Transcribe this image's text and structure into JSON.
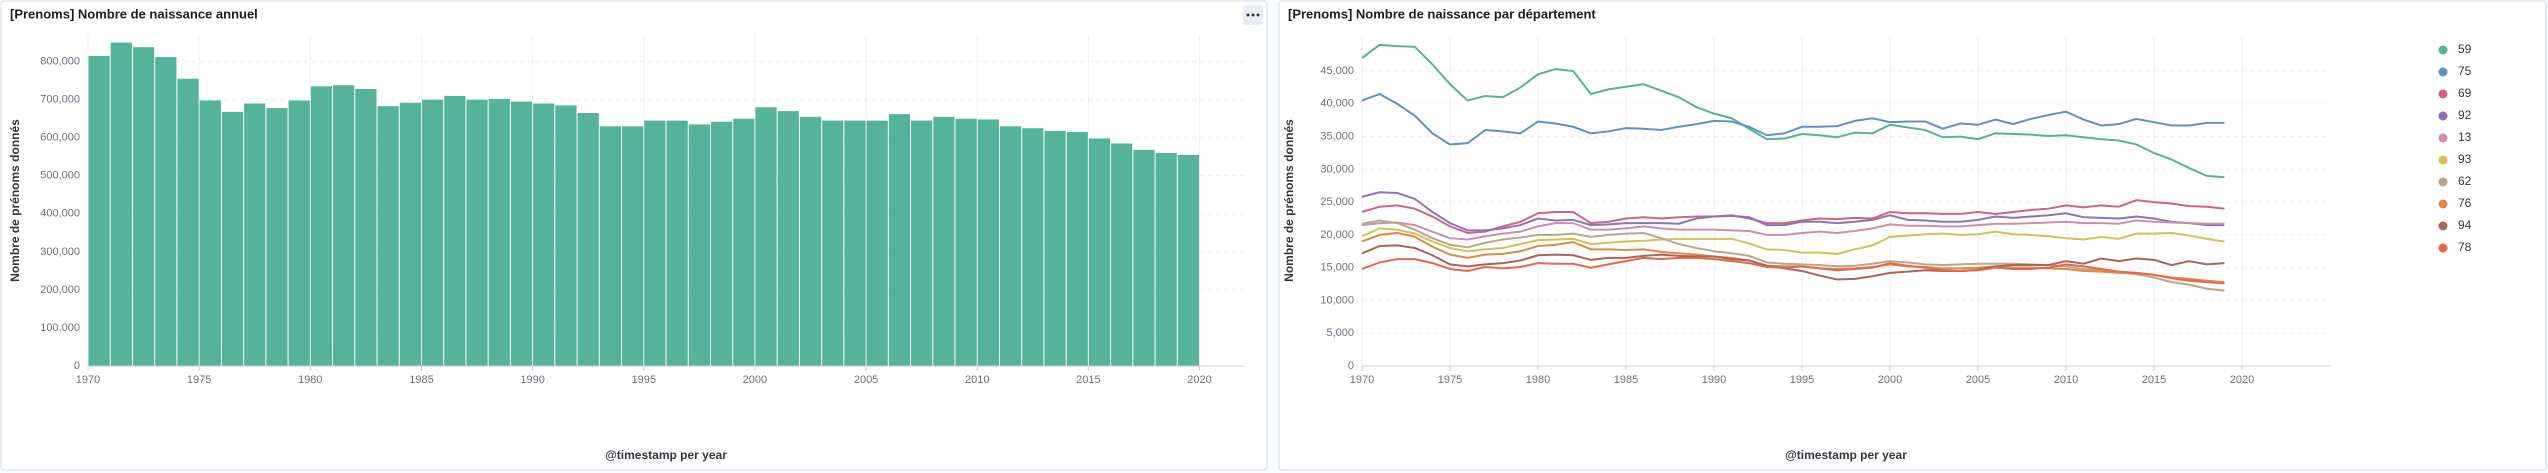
{
  "chart_data": [
    {
      "type": "bar",
      "title": "[Prenoms] Nombre de naissance annuel",
      "x_label": "@timestamp per year",
      "y_label": "Nombre de prénoms donnés",
      "color": "#54b399",
      "grid": true,
      "x": [
        1970,
        1971,
        1972,
        1973,
        1974,
        1975,
        1976,
        1977,
        1978,
        1979,
        1980,
        1981,
        1982,
        1983,
        1984,
        1985,
        1986,
        1987,
        1988,
        1989,
        1990,
        1991,
        1992,
        1993,
        1994,
        1995,
        1996,
        1997,
        1998,
        1999,
        2000,
        2001,
        2002,
        2003,
        2004,
        2005,
        2006,
        2007,
        2008,
        2009,
        2010,
        2011,
        2012,
        2013,
        2014,
        2015,
        2016,
        2017,
        2018,
        2019
      ],
      "values": [
        815000,
        850000,
        838000,
        812000,
        755000,
        698000,
        668000,
        690000,
        678000,
        698000,
        735000,
        738000,
        728000,
        683000,
        692000,
        700000,
        710000,
        700000,
        702000,
        695000,
        690000,
        685000,
        665000,
        630000,
        630000,
        645000,
        645000,
        635000,
        642000,
        650000,
        680000,
        670000,
        655000,
        645000,
        645000,
        645000,
        662000,
        645000,
        655000,
        650000,
        648000,
        630000,
        625000,
        618000,
        615000,
        598000,
        585000,
        568000,
        560000,
        555000
      ],
      "xlim": [
        1970,
        2022
      ],
      "ylim": [
        0,
        870000
      ],
      "xticks": [
        1970,
        1975,
        1980,
        1985,
        1990,
        1995,
        2000,
        2005,
        2010,
        2015,
        2020
      ],
      "yticks": [
        0,
        {
          "value": 100000,
          "label": "100,000"
        },
        {
          "value": 200000,
          "label": "200,000"
        },
        {
          "value": 300000,
          "label": "300,000"
        },
        {
          "value": 400000,
          "label": "400,000"
        },
        {
          "value": 500000,
          "label": "500,000"
        },
        {
          "value": 600000,
          "label": "600,000"
        },
        {
          "value": 700000,
          "label": "700,000"
        },
        {
          "value": 800000,
          "label": "800,000"
        }
      ]
    },
    {
      "type": "line",
      "title": "[Prenoms] Nombre de naissance par département",
      "x_label": "@timestamp per year",
      "y_label": "Nombre de prénoms donnés",
      "grid": true,
      "legend": "right",
      "x": [
        1970,
        1971,
        1972,
        1973,
        1974,
        1975,
        1976,
        1977,
        1978,
        1979,
        1980,
        1981,
        1982,
        1983,
        1984,
        1985,
        1986,
        1987,
        1988,
        1989,
        1990,
        1991,
        1992,
        1993,
        1994,
        1995,
        1996,
        1997,
        1998,
        1999,
        2000,
        2001,
        2002,
        2003,
        2004,
        2005,
        2006,
        2007,
        2008,
        2009,
        2010,
        2011,
        2012,
        2013,
        2014,
        2015,
        2016,
        2017,
        2018,
        2019
      ],
      "xlim": [
        1970,
        2025
      ],
      "ylim": [
        0,
        50500
      ],
      "xticks": [
        1970,
        1975,
        1980,
        1985,
        1990,
        1995,
        2000,
        2005,
        2010,
        2015,
        2020
      ],
      "yticks": [
        0,
        {
          "value": 5000,
          "label": "5,000"
        },
        {
          "value": 10000,
          "label": "10,000"
        },
        {
          "value": 15000,
          "label": "15,000"
        },
        {
          "value": 20000,
          "label": "20,000"
        },
        {
          "value": 25000,
          "label": "25,000"
        },
        {
          "value": 30000,
          "label": "30,000"
        },
        {
          "value": 35000,
          "label": "35,000"
        },
        {
          "value": 40000,
          "label": "40,000"
        },
        {
          "value": 45000,
          "label": "45,000"
        }
      ],
      "series": [
        {
          "name": "59",
          "color": "#54b399",
          "values": [
            47000,
            49000,
            48800,
            48700,
            46000,
            43000,
            40500,
            41200,
            41000,
            42500,
            44500,
            45300,
            45000,
            41500,
            42200,
            42600,
            43000,
            42000,
            41000,
            39500,
            38500,
            37800,
            36200,
            34600,
            34700,
            35400,
            35200,
            34900,
            35600,
            35500,
            36800,
            36400,
            36000,
            34900,
            35000,
            34600,
            35500,
            35400,
            35300,
            35100,
            35200,
            34900,
            34600,
            34400,
            33800,
            32500,
            31500,
            30200,
            29000,
            28800
          ]
        },
        {
          "name": "75",
          "color": "#6092c0",
          "values": [
            40500,
            41500,
            40000,
            38200,
            35500,
            33800,
            34000,
            36000,
            35800,
            35500,
            37300,
            37000,
            36500,
            35500,
            35800,
            36300,
            36200,
            36000,
            36500,
            36900,
            37400,
            37300,
            36500,
            35200,
            35500,
            36500,
            36500,
            36600,
            37400,
            37800,
            37200,
            37300,
            37300,
            36200,
            37000,
            36800,
            37600,
            36900,
            37700,
            38300,
            38800,
            37600,
            36700,
            36900,
            37700,
            37200,
            36700,
            36700,
            37100,
            37100
          ]
        },
        {
          "name": "69",
          "color": "#d36086",
          "values": [
            23500,
            24300,
            24500,
            24000,
            22800,
            21300,
            20300,
            20500,
            21300,
            22000,
            23300,
            23500,
            23500,
            21800,
            22000,
            22500,
            22700,
            22500,
            22700,
            22800,
            22800,
            23000,
            22500,
            21800,
            21800,
            22200,
            22500,
            22400,
            22600,
            22500,
            23500,
            23300,
            23300,
            23200,
            23200,
            23500,
            23200,
            23500,
            23800,
            24000,
            24500,
            24200,
            24500,
            24300,
            25300,
            25000,
            24800,
            24400,
            24300,
            24000
          ]
        },
        {
          "name": "92",
          "color": "#9170b8",
          "values": [
            25800,
            26500,
            26400,
            25500,
            23500,
            21800,
            20700,
            20700,
            21000,
            21500,
            22500,
            22200,
            22300,
            21500,
            21600,
            21800,
            21800,
            21800,
            21700,
            22500,
            22800,
            22900,
            22700,
            21500,
            21500,
            22000,
            22000,
            21800,
            22000,
            22300,
            23000,
            22300,
            22200,
            22000,
            22000,
            22300,
            22800,
            22600,
            22800,
            23000,
            23300,
            22700,
            22600,
            22500,
            22800,
            22500,
            22000,
            21800,
            21500,
            21500
          ]
        },
        {
          "name": "13",
          "color": "#ca8eae",
          "values": [
            21500,
            21800,
            21900,
            21500,
            20500,
            19500,
            19300,
            19800,
            20200,
            20500,
            21300,
            21800,
            21800,
            20800,
            20800,
            21000,
            21300,
            21000,
            20800,
            20800,
            20800,
            20700,
            20600,
            20000,
            20000,
            20300,
            20500,
            20300,
            20600,
            21000,
            21600,
            21400,
            21400,
            21300,
            21300,
            21500,
            21700,
            21700,
            21800,
            21900,
            22000,
            21800,
            21800,
            21700,
            22200,
            22000,
            21900,
            21800,
            21700,
            21700
          ]
        },
        {
          "name": "93",
          "color": "#d6bf57",
          "values": [
            19800,
            21000,
            20800,
            20200,
            19000,
            18000,
            17500,
            17800,
            18000,
            18600,
            19200,
            19300,
            19400,
            18600,
            18800,
            19000,
            19100,
            19300,
            19400,
            19400,
            19400,
            19400,
            18700,
            17800,
            17700,
            17300,
            17300,
            17100,
            17800,
            18400,
            19700,
            19900,
            20100,
            20200,
            20000,
            20100,
            20500,
            20100,
            20000,
            19800,
            19500,
            19300,
            19700,
            19400,
            20200,
            20200,
            20300,
            19900,
            19400,
            19000
          ]
        },
        {
          "name": "62",
          "color": "#b9a888",
          "values": [
            21700,
            22200,
            21800,
            20800,
            19500,
            18500,
            18100,
            18800,
            19300,
            19600,
            20000,
            20000,
            20200,
            19700,
            20000,
            20200,
            20300,
            19500,
            18600,
            18000,
            17500,
            17200,
            16800,
            15800,
            15600,
            15500,
            15400,
            15200,
            15300,
            15600,
            16000,
            15800,
            15500,
            15400,
            15500,
            15600,
            15600,
            15600,
            15500,
            15400,
            15200,
            14800,
            14600,
            14300,
            14000,
            13500,
            12800,
            12400,
            11800,
            11500
          ]
        },
        {
          "name": "76",
          "color": "#da8b45",
          "values": [
            19000,
            20000,
            20300,
            19700,
            18200,
            17000,
            16500,
            17000,
            17100,
            17500,
            18300,
            18500,
            18900,
            17800,
            17800,
            17700,
            17800,
            17400,
            17200,
            17000,
            16700,
            16500,
            16100,
            15300,
            15200,
            15200,
            14900,
            14800,
            14900,
            15100,
            15500,
            15200,
            15100,
            14900,
            14900,
            15000,
            15200,
            15000,
            15000,
            14900,
            14800,
            14500,
            14400,
            14200,
            14200,
            13900,
            13500,
            13300,
            13000,
            12800
          ]
        },
        {
          "name": "94",
          "color": "#aa6556",
          "values": [
            17200,
            18300,
            18400,
            18000,
            16900,
            15500,
            15200,
            15500,
            15700,
            16100,
            16900,
            17000,
            16900,
            16200,
            16500,
            16500,
            16800,
            17000,
            16800,
            16700,
            16700,
            16300,
            16100,
            15300,
            14900,
            14500,
            13800,
            13200,
            13300,
            13700,
            14200,
            14400,
            14600,
            14500,
            14500,
            14700,
            15200,
            15400,
            15400,
            15400,
            16000,
            15600,
            16400,
            16000,
            16400,
            16200,
            15400,
            16000,
            15500,
            15700
          ]
        },
        {
          "name": "78",
          "color": "#e7664c",
          "values": [
            14800,
            15800,
            16300,
            16300,
            15700,
            14800,
            14500,
            15100,
            14900,
            15100,
            15700,
            15600,
            15600,
            15000,
            15500,
            16000,
            16500,
            16300,
            16500,
            16500,
            16300,
            16000,
            15700,
            15100,
            15000,
            15200,
            14900,
            14600,
            14800,
            15000,
            15700,
            15300,
            15000,
            14600,
            14500,
            14600,
            15000,
            14800,
            14800,
            15000,
            15500,
            15200,
            14800,
            14400,
            14200,
            13900,
            13400,
            13000,
            12800,
            12600
          ]
        }
      ]
    }
  ]
}
